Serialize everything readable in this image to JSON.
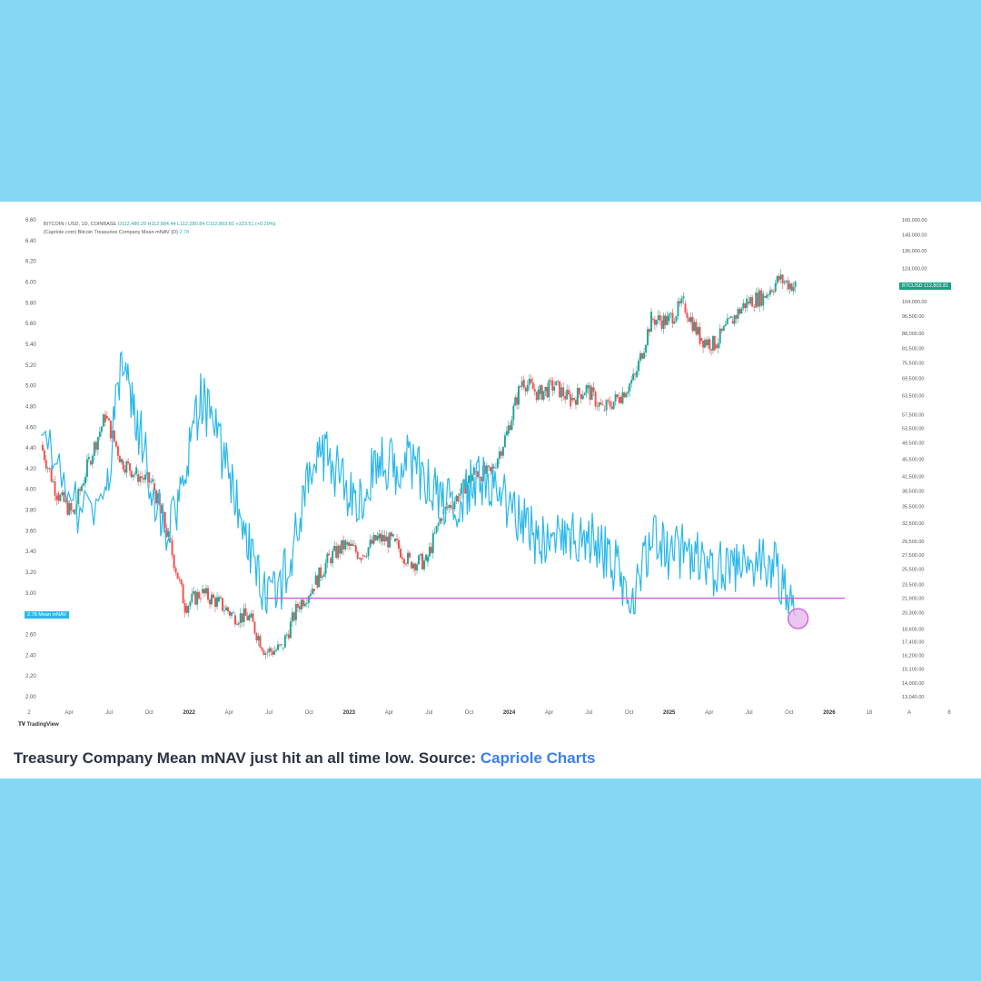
{
  "caption": {
    "text": "Treasury Company Mean mNAV just hit an all time low. Source: ",
    "source": "Capriole Charts"
  },
  "legend": {
    "line1_prefix": "BITCOIN / USD, 1D, COINBASE",
    "line1_values": "O112,480.29 H112,884.44 L112,280.84 C112,803.81 +323.51 (+0.29%)",
    "line2_prefix": "(Capriole.com) Bitcoin Treasuries Company Mean mNAV (D)",
    "line2_value": "2.78"
  },
  "labels": {
    "mnav_tag": "2.78  Mean mNAV",
    "btc_tag": "BTCUSD  112,803.81",
    "tradingview": "TradingView"
  },
  "colors": {
    "page_bg": "#87d7f4",
    "mnav_line": "#2bb8ea",
    "candle_up": "#26a69a",
    "candle_down": "#ef5350",
    "support_line": "#c85fd6",
    "circle_fill": "#e6b3ec"
  },
  "chart_data": {
    "type": "line",
    "title": "",
    "left_axis": {
      "name": "Mean mNAV",
      "ticks": [
        "6.60",
        "6.40",
        "6.20",
        "6.00",
        "5.80",
        "5.60",
        "5.40",
        "5.20",
        "5.00",
        "4.80",
        "4.60",
        "4.40",
        "4.20",
        "4.00",
        "3.80",
        "3.60",
        "3.40",
        "3.20",
        "3.00",
        "2.80",
        "2.60",
        "2.40",
        "2.20",
        "2.00"
      ]
    },
    "right_axis": {
      "name": "BTCUSD (log)",
      "ticks": [
        "160,000.00",
        "148,000.00",
        "136,000.00",
        "124,000.00",
        "114,000.00",
        "104,000.00",
        "96,500.00",
        "88,000.00",
        "81,500.00",
        "75,500.00",
        "69,500.00",
        "63,500.00",
        "57,500.00",
        "53,500.00",
        "49,500.00",
        "45,500.00",
        "41,500.00",
        "38,500.00",
        "35,500.00",
        "32,500.00",
        "29,500.00",
        "27,500.00",
        "25,500.00",
        "23,500.00",
        "21,900.00",
        "20,300.00",
        "18,600.00",
        "17,400.00",
        "16,200.00",
        "15,100.00",
        "14,000.00",
        "13,040.00"
      ]
    },
    "x_ticks": [
      "2",
      "Apr",
      "Jul",
      "Oct",
      "2022",
      "Apr",
      "Jul",
      "Oct",
      "2023",
      "Apr",
      "Jul",
      "Oct",
      "2024",
      "Apr",
      "Jul",
      "Oct",
      "2025",
      "Apr",
      "Jul",
      "Oct",
      "2026",
      "18",
      "A",
      "8"
    ],
    "series": [
      {
        "name": "Mean mNAV",
        "style": "line",
        "points": [
          [
            "2021-09",
            4.6
          ],
          [
            "2021-11",
            3.8
          ],
          [
            "2022-01",
            3.9
          ],
          [
            "2022-02",
            5.2
          ],
          [
            "2022-03",
            4.7
          ],
          [
            "2022-04",
            4.0
          ],
          [
            "2022-05",
            3.5
          ],
          [
            "2022-06",
            4.1
          ],
          [
            "2022-07",
            4.9
          ],
          [
            "2022-08",
            4.5
          ],
          [
            "2022-09",
            4.0
          ],
          [
            "2022-10",
            3.4
          ],
          [
            "2022-11",
            3.0
          ],
          [
            "2022-12",
            3.1
          ],
          [
            "2023-01",
            3.6
          ],
          [
            "2023-02",
            4.3
          ],
          [
            "2023-03",
            4.3
          ],
          [
            "2023-04",
            4.0
          ],
          [
            "2023-05",
            3.9
          ],
          [
            "2023-06",
            4.3
          ],
          [
            "2023-07",
            4.2
          ],
          [
            "2023-08",
            4.3
          ],
          [
            "2023-09",
            4.1
          ],
          [
            "2023-10",
            3.9
          ],
          [
            "2023-11",
            3.8
          ],
          [
            "2023-12",
            4.1
          ],
          [
            "2024-01",
            4.0
          ],
          [
            "2024-02",
            3.9
          ],
          [
            "2024-03",
            3.7
          ],
          [
            "2024-04",
            3.5
          ],
          [
            "2024-05",
            3.6
          ],
          [
            "2024-06",
            3.5
          ],
          [
            "2024-07",
            3.6
          ],
          [
            "2024-08",
            3.4
          ],
          [
            "2024-09",
            3.2
          ],
          [
            "2024-10",
            2.95
          ],
          [
            "2024-11",
            3.5
          ],
          [
            "2024-12",
            3.4
          ],
          [
            "2025-01",
            3.4
          ],
          [
            "2025-02",
            3.3
          ],
          [
            "2025-03",
            3.2
          ],
          [
            "2025-04",
            3.3
          ],
          [
            "2025-05",
            3.2
          ],
          [
            "2025-06",
            3.3
          ],
          [
            "2025-07",
            3.2
          ],
          [
            "2025-08",
            2.78
          ]
        ]
      },
      {
        "name": "BTCUSD",
        "style": "candles",
        "points": [
          [
            "2021-09",
            49000
          ],
          [
            "2021-10",
            38000
          ],
          [
            "2021-11",
            34000
          ],
          [
            "2021-12",
            45000
          ],
          [
            "2022-01",
            57000
          ],
          [
            "2022-02",
            45000
          ],
          [
            "2022-03",
            42000
          ],
          [
            "2022-04",
            40000
          ],
          [
            "2022-05",
            30000
          ],
          [
            "2022-06",
            21000
          ],
          [
            "2022-07",
            22500
          ],
          [
            "2022-08",
            21500
          ],
          [
            "2022-09",
            20000
          ],
          [
            "2022-10",
            19800
          ],
          [
            "2022-11",
            16500
          ],
          [
            "2022-12",
            16800
          ],
          [
            "2023-01",
            21000
          ],
          [
            "2023-02",
            23500
          ],
          [
            "2023-03",
            27000
          ],
          [
            "2023-04",
            29000
          ],
          [
            "2023-05",
            27500
          ],
          [
            "2023-06",
            30000
          ],
          [
            "2023-07",
            29500
          ],
          [
            "2023-08",
            26500
          ],
          [
            "2023-09",
            26500
          ],
          [
            "2023-10",
            34000
          ],
          [
            "2023-11",
            37500
          ],
          [
            "2023-12",
            42500
          ],
          [
            "2024-01",
            42000
          ],
          [
            "2024-02",
            52000
          ],
          [
            "2024-03",
            69000
          ],
          [
            "2024-04",
            64000
          ],
          [
            "2024-05",
            67000
          ],
          [
            "2024-06",
            62000
          ],
          [
            "2024-07",
            66000
          ],
          [
            "2024-08",
            59000
          ],
          [
            "2024-09",
            63000
          ],
          [
            "2024-10",
            70000
          ],
          [
            "2024-11",
            95000
          ],
          [
            "2024-12",
            94000
          ],
          [
            "2025-01",
            103000
          ],
          [
            "2025-02",
            86000
          ],
          [
            "2025-03",
            83000
          ],
          [
            "2025-04",
            94000
          ],
          [
            "2025-05",
            104000
          ],
          [
            "2025-06",
            107000
          ],
          [
            "2025-07",
            117000
          ],
          [
            "2025-08",
            112803.81
          ]
        ]
      }
    ],
    "annotations": [
      {
        "type": "horizontal_line",
        "value": 2.95,
        "axis": "left",
        "from": "2022-11"
      },
      {
        "type": "circle",
        "at": "2025-08",
        "value": 2.78,
        "axis": "left"
      }
    ]
  }
}
